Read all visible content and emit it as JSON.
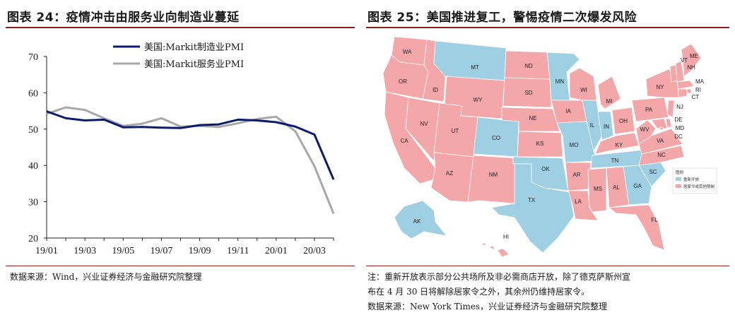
{
  "left_panel": {
    "title": "图表 24：疫情冲击由服务业向制造业蔓延",
    "source": "数据来源：Wind，兴业证券经济与金融研究院整理"
  },
  "right_panel": {
    "title": "图表 25：美国推进复工，警惕疫情二次爆发风险",
    "note_line1": "注：重新开放表示部分公共场所及非必需商店开放，除了德克萨斯州宣",
    "note_line2": "布在 4 月 30 日将解除居家令之外，其余州仍维持居家令。",
    "source": "数据来源：New York Times，兴业证券经济与金融研究院整理",
    "map_legend": {
      "title": "图例",
      "items": [
        {
          "label": "重新开放",
          "color": "#9fcfe3"
        },
        {
          "label": "居家令或其他限制",
          "color": "#f3a7a9"
        }
      ]
    },
    "states": [
      {
        "code": "WA",
        "status": "restricted"
      },
      {
        "code": "OR",
        "status": "restricted"
      },
      {
        "code": "CA",
        "status": "restricted"
      },
      {
        "code": "NV",
        "status": "restricted"
      },
      {
        "code": "ID",
        "status": "restricted"
      },
      {
        "code": "MT",
        "status": "reopening"
      },
      {
        "code": "WY",
        "status": "restricted"
      },
      {
        "code": "UT",
        "status": "restricted"
      },
      {
        "code": "AZ",
        "status": "restricted"
      },
      {
        "code": "CO",
        "status": "reopening"
      },
      {
        "code": "NM",
        "status": "restricted"
      },
      {
        "code": "ND",
        "status": "restricted"
      },
      {
        "code": "SD",
        "status": "restricted"
      },
      {
        "code": "NE",
        "status": "restricted"
      },
      {
        "code": "KS",
        "status": "restricted"
      },
      {
        "code": "OK",
        "status": "reopening"
      },
      {
        "code": "TX",
        "status": "reopening"
      },
      {
        "code": "MN",
        "status": "reopening"
      },
      {
        "code": "IA",
        "status": "restricted"
      },
      {
        "code": "MO",
        "status": "reopening"
      },
      {
        "code": "AR",
        "status": "restricted"
      },
      {
        "code": "LA",
        "status": "restricted"
      },
      {
        "code": "WI",
        "status": "restricted"
      },
      {
        "code": "IL",
        "status": "reopening"
      },
      {
        "code": "MI",
        "status": "restricted"
      },
      {
        "code": "IN",
        "status": "reopening"
      },
      {
        "code": "OH",
        "status": "restricted"
      },
      {
        "code": "KY",
        "status": "restricted"
      },
      {
        "code": "TN",
        "status": "reopening"
      },
      {
        "code": "MS",
        "status": "restricted"
      },
      {
        "code": "AL",
        "status": "restricted"
      },
      {
        "code": "GA",
        "status": "reopening"
      },
      {
        "code": "FL",
        "status": "restricted"
      },
      {
        "code": "SC",
        "status": "reopening"
      },
      {
        "code": "NC",
        "status": "restricted"
      },
      {
        "code": "VA",
        "status": "restricted"
      },
      {
        "code": "WV",
        "status": "restricted"
      },
      {
        "code": "PA",
        "status": "restricted"
      },
      {
        "code": "NY",
        "status": "restricted"
      },
      {
        "code": "VT",
        "status": "restricted"
      },
      {
        "code": "NH",
        "status": "restricted"
      },
      {
        "code": "ME",
        "status": "restricted"
      },
      {
        "code": "MA",
        "status": "restricted"
      },
      {
        "code": "RI",
        "status": "restricted"
      },
      {
        "code": "CT",
        "status": "restricted"
      },
      {
        "code": "NJ",
        "status": "restricted"
      },
      {
        "code": "DE",
        "status": "restricted"
      },
      {
        "code": "MD",
        "status": "restricted"
      },
      {
        "code": "DC",
        "status": "restricted"
      },
      {
        "code": "AK",
        "status": "reopening"
      },
      {
        "code": "HI",
        "status": "restricted"
      }
    ]
  },
  "chart_data": {
    "type": "line",
    "title": "",
    "xlabel": "",
    "ylabel": "",
    "x": [
      "19/01",
      "19/02",
      "19/03",
      "19/04",
      "19/05",
      "19/06",
      "19/07",
      "19/08",
      "19/09",
      "19/10",
      "19/11",
      "19/12",
      "20/01",
      "20/02",
      "20/03",
      "20/04"
    ],
    "x_tick_labels": [
      "19/01",
      "19/03",
      "19/05",
      "19/07",
      "19/09",
      "19/11",
      "20/01",
      "20/03"
    ],
    "ylim": [
      20,
      70
    ],
    "y_ticks": [
      20,
      30,
      40,
      50,
      60,
      70
    ],
    "grid": false,
    "legend_position": "top-right",
    "series": [
      {
        "name": "美国:Markit制造业PMI",
        "color": "#0d1a6e",
        "values": [
          54.9,
          53.0,
          52.4,
          52.6,
          50.5,
          50.6,
          50.4,
          50.3,
          51.1,
          51.3,
          52.6,
          52.4,
          51.9,
          50.7,
          48.5,
          36.1
        ]
      },
      {
        "name": "美国:Markit服务业PMI",
        "color": "#a8a8a8",
        "values": [
          54.2,
          56.0,
          55.3,
          53.0,
          50.9,
          51.5,
          53.0,
          50.7,
          50.9,
          50.6,
          51.6,
          52.8,
          53.4,
          49.4,
          39.8,
          26.7
        ]
      }
    ]
  }
}
